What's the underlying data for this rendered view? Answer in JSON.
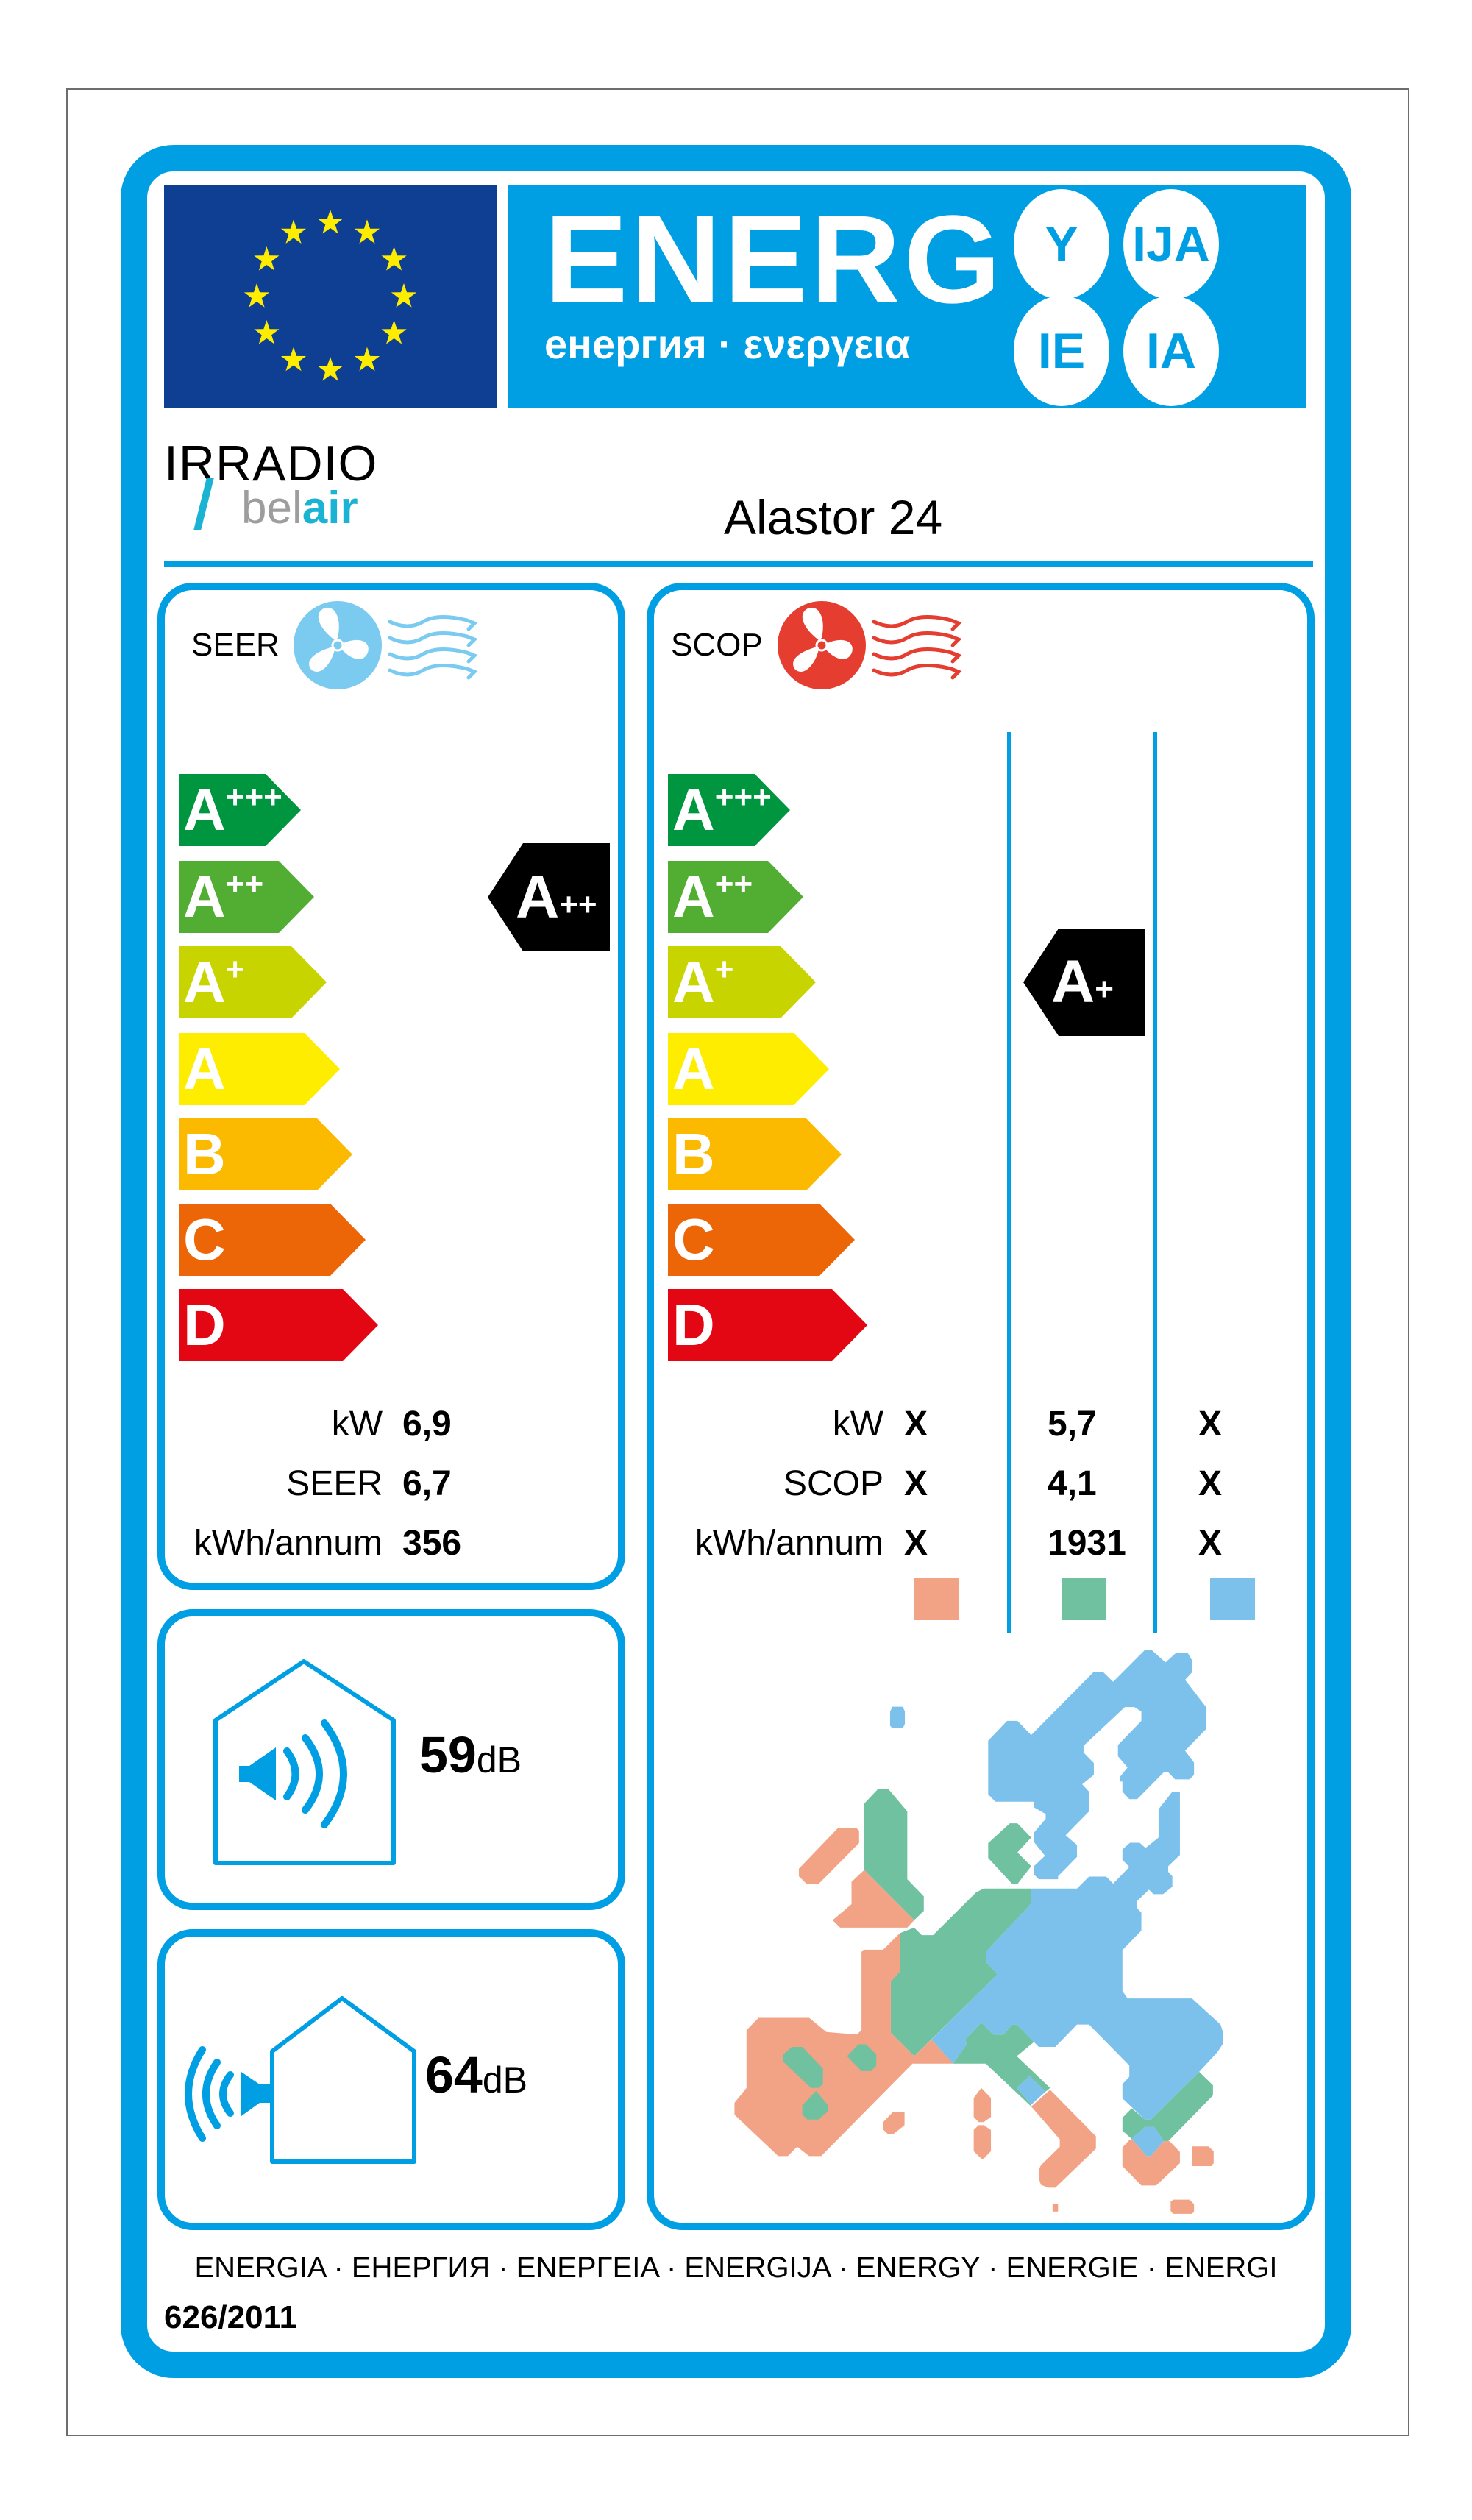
{
  "header": {
    "title": "ENERG",
    "subtitle": "енергия · ενεργεια",
    "suffixes": [
      "Y",
      "IJA",
      "IE",
      "IA"
    ]
  },
  "brand": {
    "line1": "IRRADIO",
    "line2_a": "bel",
    "line2_b": "air"
  },
  "model": "Alastor 24",
  "scale": [
    {
      "letter": "A",
      "sup": "+++",
      "color": "#009640"
    },
    {
      "letter": "A",
      "sup": "++",
      "color": "#52AE32"
    },
    {
      "letter": "A",
      "sup": "+",
      "color": "#C8D400"
    },
    {
      "letter": "A",
      "sup": "",
      "color": "#FFED00"
    },
    {
      "letter": "B",
      "sup": "",
      "color": "#FBBA00"
    },
    {
      "letter": "C",
      "sup": "",
      "color": "#EC6608"
    },
    {
      "letter": "D",
      "sup": "",
      "color": "#E30613"
    }
  ],
  "seer": {
    "label": "SEER",
    "rating": {
      "letter": "A",
      "sup": "++"
    },
    "rows": [
      {
        "label": "kW",
        "value": "6,9"
      },
      {
        "label": "SEER",
        "value": "6,7"
      },
      {
        "label": "kWh/annum",
        "value": "356"
      }
    ]
  },
  "scop": {
    "label": "SCOP",
    "rating": {
      "letter": "A",
      "sup": "+"
    },
    "rows": [
      {
        "label": "kW",
        "values": [
          "X",
          "5,7",
          "X"
        ]
      },
      {
        "label": "SCOP",
        "values": [
          "X",
          "4,1",
          "X"
        ]
      },
      {
        "label": "kWh/annum",
        "values": [
          "X",
          "1931",
          "X"
        ]
      }
    ],
    "climate_colors": [
      "#F2A385",
      "#6FC1A0",
      "#7BC1EC"
    ],
    "rated_climate_zone": "average"
  },
  "noise": {
    "indoor": {
      "value": "59",
      "unit": "dB"
    },
    "outdoor": {
      "value": "64",
      "unit": "dB"
    }
  },
  "footer": {
    "languages": "ENERGIA · ЕНЕРГИЯ · ΕΝΕΡΓΕΙΑ · ENERGIJA · ENERGY · ENERGIE · ENERGI",
    "regulation": "626/2011"
  },
  "colors": {
    "frame": "#009FE3",
    "flag": "#0F3F93",
    "stars": "#FFED00",
    "cooling_icon": "#7ACBEF",
    "heating_icon": "#E53D30"
  }
}
